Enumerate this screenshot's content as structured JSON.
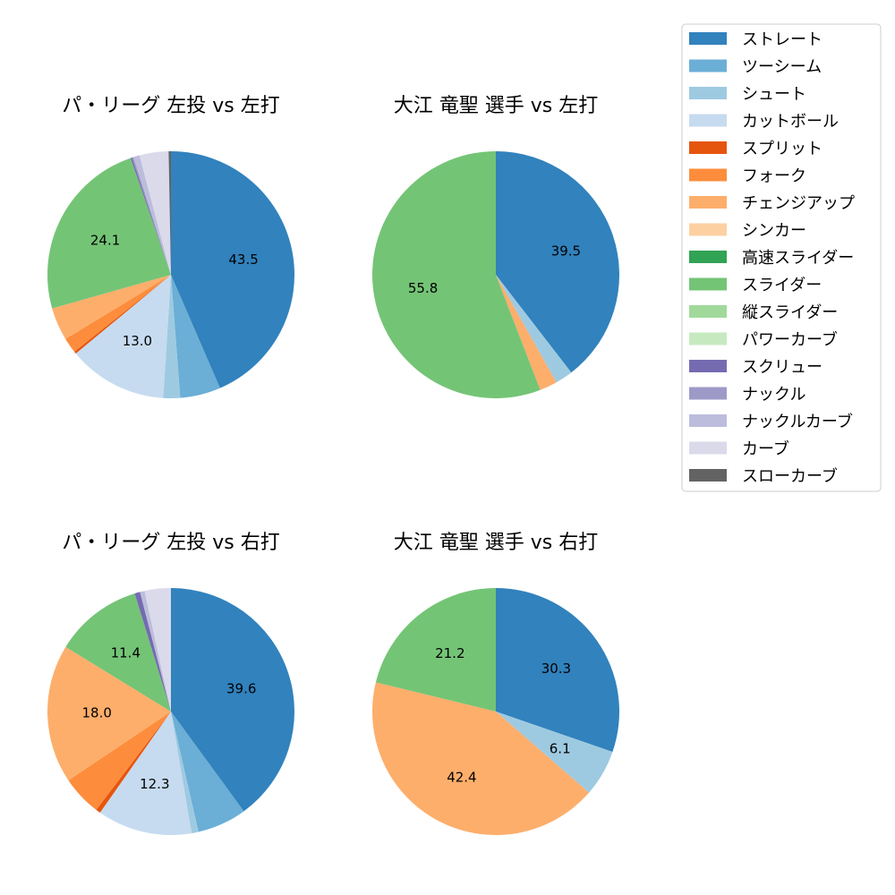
{
  "legend": {
    "placement": "right",
    "items": [
      {
        "label": "ストレート",
        "color": "#3182bd"
      },
      {
        "label": "ツーシーム",
        "color": "#6baed6"
      },
      {
        "label": "シュート",
        "color": "#9ecae1"
      },
      {
        "label": "カットボール",
        "color": "#c6dbef"
      },
      {
        "label": "スプリット",
        "color": "#e6550d"
      },
      {
        "label": "フォーク",
        "color": "#fd8d3c"
      },
      {
        "label": "チェンジアップ",
        "color": "#fdae6b"
      },
      {
        "label": "シンカー",
        "color": "#fdd0a2"
      },
      {
        "label": "高速スライダー",
        "color": "#31a354"
      },
      {
        "label": "スライダー",
        "color": "#74c476"
      },
      {
        "label": "縦スライダー",
        "color": "#a1d99b"
      },
      {
        "label": "パワーカーブ",
        "color": "#c7e9c0"
      },
      {
        "label": "スクリュー",
        "color": "#756bb1"
      },
      {
        "label": "ナックル",
        "color": "#9e9ac8"
      },
      {
        "label": "ナックルカーブ",
        "color": "#bcbddc"
      },
      {
        "label": "カーブ",
        "color": "#dadaeb"
      },
      {
        "label": "スローカーブ",
        "color": "#636363"
      }
    ]
  },
  "chart_data": [
    {
      "type": "pie",
      "title": "パ・リーグ 左投 vs 左打",
      "slices": [
        {
          "category": "ストレート",
          "value": 43.5,
          "label": "43.5"
        },
        {
          "category": "ツーシーム",
          "value": 5.3,
          "label": ""
        },
        {
          "category": "シュート",
          "value": 2.2,
          "label": ""
        },
        {
          "category": "カットボール",
          "value": 13.0,
          "label": "13.0"
        },
        {
          "category": "スプリット",
          "value": 0.3,
          "label": ""
        },
        {
          "category": "フォーク",
          "value": 2.0,
          "label": ""
        },
        {
          "category": "チェンジアップ",
          "value": 4.3,
          "label": ""
        },
        {
          "category": "スライダー",
          "value": 24.1,
          "label": "24.1"
        },
        {
          "category": "スクリュー",
          "value": 0.2,
          "label": ""
        },
        {
          "category": "ナックル",
          "value": 0.2,
          "label": ""
        },
        {
          "category": "ナックルカーブ",
          "value": 0.8,
          "label": ""
        },
        {
          "category": "カーブ",
          "value": 3.8,
          "label": ""
        },
        {
          "category": "スローカーブ",
          "value": 0.3,
          "label": ""
        }
      ]
    },
    {
      "type": "pie",
      "title": "大江 竜聖 選手 vs 左打",
      "slices": [
        {
          "category": "ストレート",
          "value": 39.5,
          "label": "39.5"
        },
        {
          "category": "シュート",
          "value": 2.3,
          "label": ""
        },
        {
          "category": "チェンジアップ",
          "value": 2.3,
          "label": ""
        },
        {
          "category": "スライダー",
          "value": 55.8,
          "label": "55.8"
        }
      ]
    },
    {
      "type": "pie",
      "title": "パ・リーグ 左投 vs 右打",
      "slices": [
        {
          "category": "ストレート",
          "value": 39.6,
          "label": "39.6"
        },
        {
          "category": "ツーシーム",
          "value": 6.4,
          "label": ""
        },
        {
          "category": "シュート",
          "value": 0.9,
          "label": ""
        },
        {
          "category": "カットボール",
          "value": 12.3,
          "label": "12.3"
        },
        {
          "category": "スプリット",
          "value": 0.6,
          "label": ""
        },
        {
          "category": "フォーク",
          "value": 5.2,
          "label": ""
        },
        {
          "category": "チェンジアップ",
          "value": 18.0,
          "label": "18.0"
        },
        {
          "category": "スライダー",
          "value": 11.4,
          "label": "11.4"
        },
        {
          "category": "スクリュー",
          "value": 0.7,
          "label": ""
        },
        {
          "category": "ナックルカーブ",
          "value": 0.6,
          "label": ""
        },
        {
          "category": "カーブ",
          "value": 3.4,
          "label": ""
        }
      ]
    },
    {
      "type": "pie",
      "title": "大江 竜聖 選手 vs 右打",
      "slices": [
        {
          "category": "ストレート",
          "value": 30.3,
          "label": "30.3"
        },
        {
          "category": "シュート",
          "value": 6.1,
          "label": "6.1"
        },
        {
          "category": "チェンジアップ",
          "value": 42.4,
          "label": "42.4"
        },
        {
          "category": "スライダー",
          "value": 21.2,
          "label": "21.2"
        }
      ]
    }
  ]
}
